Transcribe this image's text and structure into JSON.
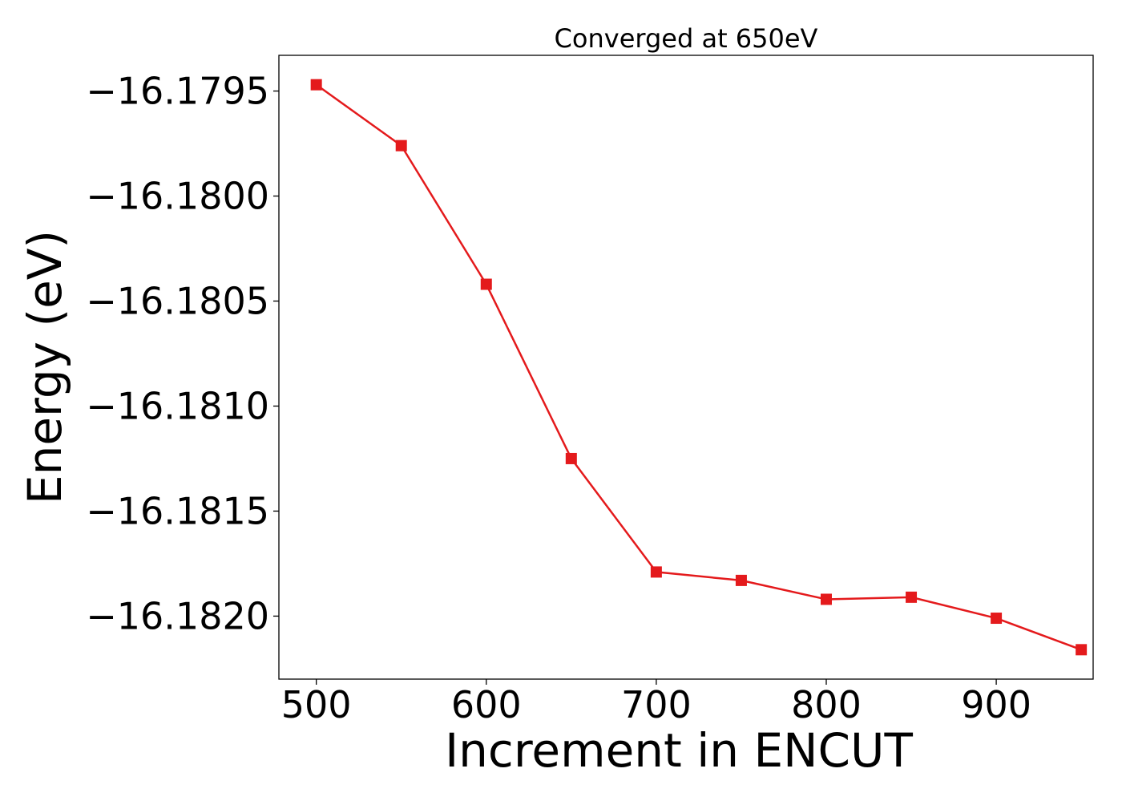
{
  "chart_data": {
    "type": "line",
    "title": "Converged at 650eV",
    "xlabel": "Increment in ENCUT",
    "ylabel": "Energy (eV)",
    "x": [
      500,
      550,
      600,
      650,
      700,
      750,
      800,
      850,
      900,
      950
    ],
    "series": [
      {
        "values": [
          -16.17947,
          -16.17976,
          -16.18042,
          -16.18125,
          -16.18179,
          -16.18183,
          -16.18192,
          -16.18191,
          -16.18201,
          -16.18216
        ],
        "color": "#e41a1c",
        "marker": "square"
      }
    ],
    "xlim": [
      478,
      957
    ],
    "ylim": [
      -16.1823,
      -16.17933
    ],
    "xticks": [
      500,
      600,
      700,
      800,
      900
    ],
    "xtick_labels": [
      "500",
      "600",
      "700",
      "800",
      "900"
    ],
    "yticks": [
      -16.1795,
      -16.18,
      -16.1805,
      -16.181,
      -16.1815,
      -16.182
    ],
    "ytick_labels": [
      "−16.1795",
      "−16.1800",
      "−16.1805",
      "−16.1810",
      "−16.1815",
      "−16.1820"
    ],
    "grid": false,
    "legend": "none"
  }
}
